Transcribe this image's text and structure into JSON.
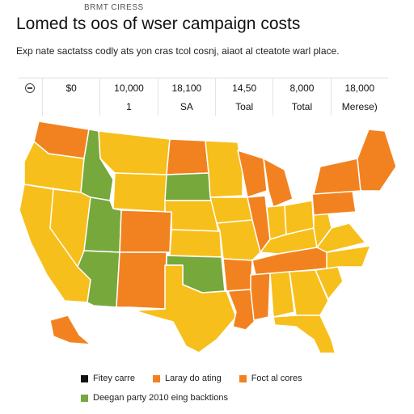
{
  "header": {
    "kicker": "BRMT CIRESS",
    "title": "Lomed ts oos of wser campaign costs",
    "subtitle": "Exp nate sactatss codly ats yon cras tcol cosnj, aiaot al cteatote warl place."
  },
  "scale": {
    "icon_name": "palette-icon",
    "values": [
      "$0",
      "10,000",
      "18,100",
      "14,50",
      "8,000",
      "18,000"
    ],
    "labels": [
      "",
      "1",
      "SA",
      "Toal",
      "Total",
      "Merese)"
    ]
  },
  "colors": {
    "yellow": "#f7bf1b",
    "orange": "#f28220",
    "green": "#76a83c",
    "border": "#ffffff",
    "black": "#111111"
  },
  "legend": {
    "row1": [
      {
        "label": "Fitey carre",
        "color": "#111111"
      },
      {
        "label": "Laray do ating",
        "color": "#f28220"
      },
      {
        "label": "Foct al cores",
        "color": "#f28220"
      }
    ],
    "row2": [
      {
        "label": "Deegan party 2010 eing backtions",
        "color": "#76a83c"
      }
    ]
  },
  "map": {
    "states": {
      "WA": "orange",
      "OR": "yellow",
      "CA": "yellow",
      "NV": "yellow",
      "ID": "green",
      "MT": "yellow",
      "WY": "yellow",
      "UT": "green",
      "AZ": "green",
      "CO": "orange",
      "NM": "orange",
      "ND": "orange",
      "SD": "green",
      "NE": "yellow",
      "KS": "yellow",
      "OK": "green",
      "TX": "yellow",
      "MN": "yellow",
      "IA": "yellow",
      "MO": "yellow",
      "AR": "orange",
      "LA": "orange",
      "WI": "orange",
      "IL": "orange",
      "MI": "orange",
      "IN": "yellow",
      "OH": "yellow",
      "KY": "yellow",
      "TN": "orange",
      "MS": "orange",
      "AL": "yellow",
      "GA": "yellow",
      "FL": "yellow",
      "SC": "yellow",
      "NC": "yellow",
      "VA": "yellow",
      "WV": "yellow",
      "PA": "orange",
      "NY": "orange",
      "NE_US": "orange",
      "AK": "orange"
    }
  }
}
